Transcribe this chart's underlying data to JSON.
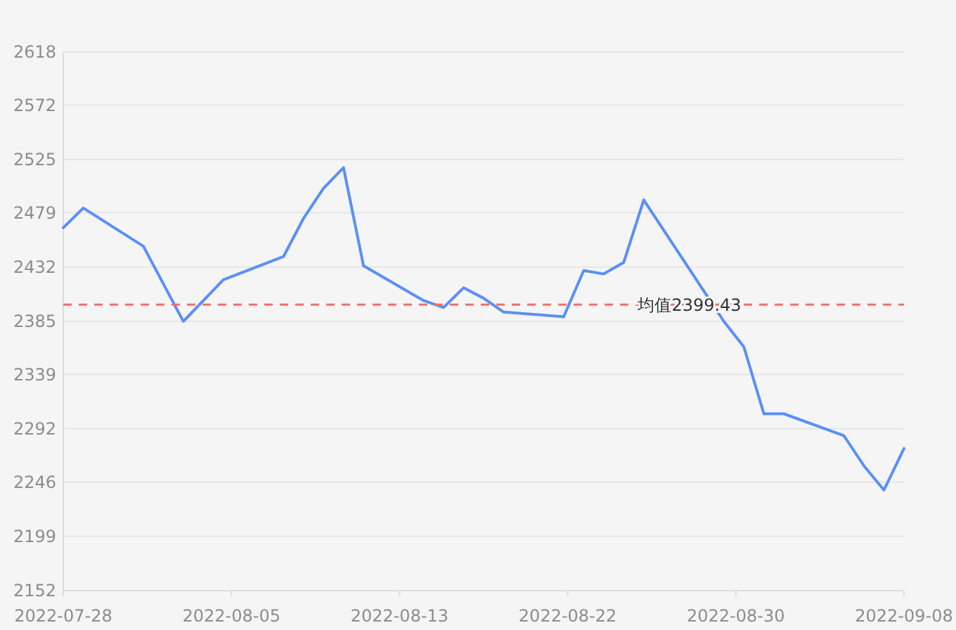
{
  "chart_data": {
    "type": "line",
    "x": [
      "2022-07-28",
      "2022-07-29",
      "2022-08-01",
      "2022-08-03",
      "2022-08-05",
      "2022-08-08",
      "2022-08-09",
      "2022-08-10",
      "2022-08-11",
      "2022-08-12",
      "2022-08-15",
      "2022-08-16",
      "2022-08-17",
      "2022-08-18",
      "2022-08-19",
      "2022-08-22",
      "2022-08-23",
      "2022-08-24",
      "2022-08-25",
      "2022-08-26",
      "2022-08-30",
      "2022-08-31",
      "2022-09-01",
      "2022-09-02",
      "2022-09-05",
      "2022-09-06",
      "2022-09-07",
      "2022-09-08"
    ],
    "series": [
      {
        "color": "#5b8ff9",
        "values": [
          2466,
          2483,
          2450,
          2385,
          2421,
          2441,
          2474,
          2500,
          2518,
          2433,
          2403,
          2397,
          2414,
          2405,
          2393,
          2389,
          2429,
          2426,
          2436,
          2490,
          2385,
          2363,
          2305,
          2305,
          2286,
          2260,
          2239,
          2275
        ]
      }
    ],
    "xlim": [
      "2022-07-28",
      "2022-09-08"
    ],
    "xticks": [
      {
        "value": "2022-07-28",
        "label": "2022-07-28"
      },
      {
        "value": "2022-08-05T09:36",
        "label": "2022-08-05"
      },
      {
        "value": "2022-08-13T19:12",
        "label": "2022-08-13"
      },
      {
        "value": "2022-08-22T04:48",
        "label": "2022-08-22"
      },
      {
        "value": "2022-08-30T14:24",
        "label": "2022-08-30"
      },
      {
        "value": "2022-09-08",
        "label": "2022-09-08"
      }
    ],
    "ylim": [
      2152,
      2618
    ],
    "yticks": [
      2152,
      2199,
      2246,
      2292,
      2339,
      2385,
      2432,
      2479,
      2525,
      2572,
      2618
    ],
    "ref_lines": [
      {
        "axis": "y",
        "value": 2399.43,
        "label": "均值2399.43",
        "color": "#f07070",
        "line_style": "dashed"
      }
    ],
    "grid": "y",
    "marker": "none",
    "line_style": "solid"
  }
}
